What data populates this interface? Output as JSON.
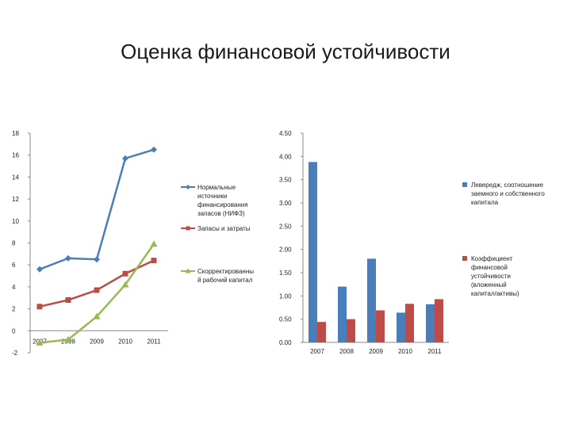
{
  "title": "Оценка финансовой устойчивости",
  "chart_data": [
    {
      "type": "line",
      "categories": [
        "2007",
        "2008",
        "2009",
        "2010",
        "2011"
      ],
      "ylim": [
        -2,
        18
      ],
      "yticks": [
        "-2",
        "0",
        "2",
        "4",
        "6",
        "8",
        "10",
        "12",
        "14",
        "16",
        "18"
      ],
      "legend_position": "right",
      "grid": false,
      "series": [
        {
          "name_lines": [
            "Нормальные",
            "источники",
            "финансирования",
            "запасов (НИФЗ)"
          ],
          "values": [
            5.6,
            6.6,
            6.5,
            15.7,
            16.5
          ],
          "color": "#4a7ebb",
          "marker": "diamond"
        },
        {
          "name_lines": [
            "Запасы и затраты"
          ],
          "values": [
            2.2,
            2.8,
            3.7,
            5.2,
            6.4
          ],
          "color": "#be4b48",
          "marker": "square"
        },
        {
          "name_lines": [
            "Скорректированны",
            "й рабочий капитал"
          ],
          "values": [
            -1.1,
            -0.8,
            1.3,
            4.2,
            7.9
          ],
          "color": "#98b954",
          "marker": "triangle"
        }
      ]
    },
    {
      "type": "bar",
      "categories": [
        "2007",
        "2008",
        "2009",
        "2010",
        "2011"
      ],
      "ylim": [
        0,
        4.5
      ],
      "yticks": [
        "0.00",
        "0.50",
        "1.00",
        "1.50",
        "2.00",
        "2.50",
        "3.00",
        "3.50",
        "4.00",
        "4.50"
      ],
      "legend_position": "right",
      "grid": false,
      "series": [
        {
          "name_lines": [
            "Левередж, соотношение",
            "заемного и собственного",
            "капитала"
          ],
          "values": [
            3.88,
            1.2,
            1.8,
            0.64,
            0.82
          ],
          "color": "#4a7ebb"
        },
        {
          "name_lines": [
            "Коэффициент",
            "финансовой",
            "устойчивости",
            "(вложенный",
            "капитал/активы)"
          ],
          "values": [
            0.44,
            0.5,
            0.69,
            0.83,
            0.93
          ],
          "color": "#be4b48"
        }
      ]
    }
  ]
}
